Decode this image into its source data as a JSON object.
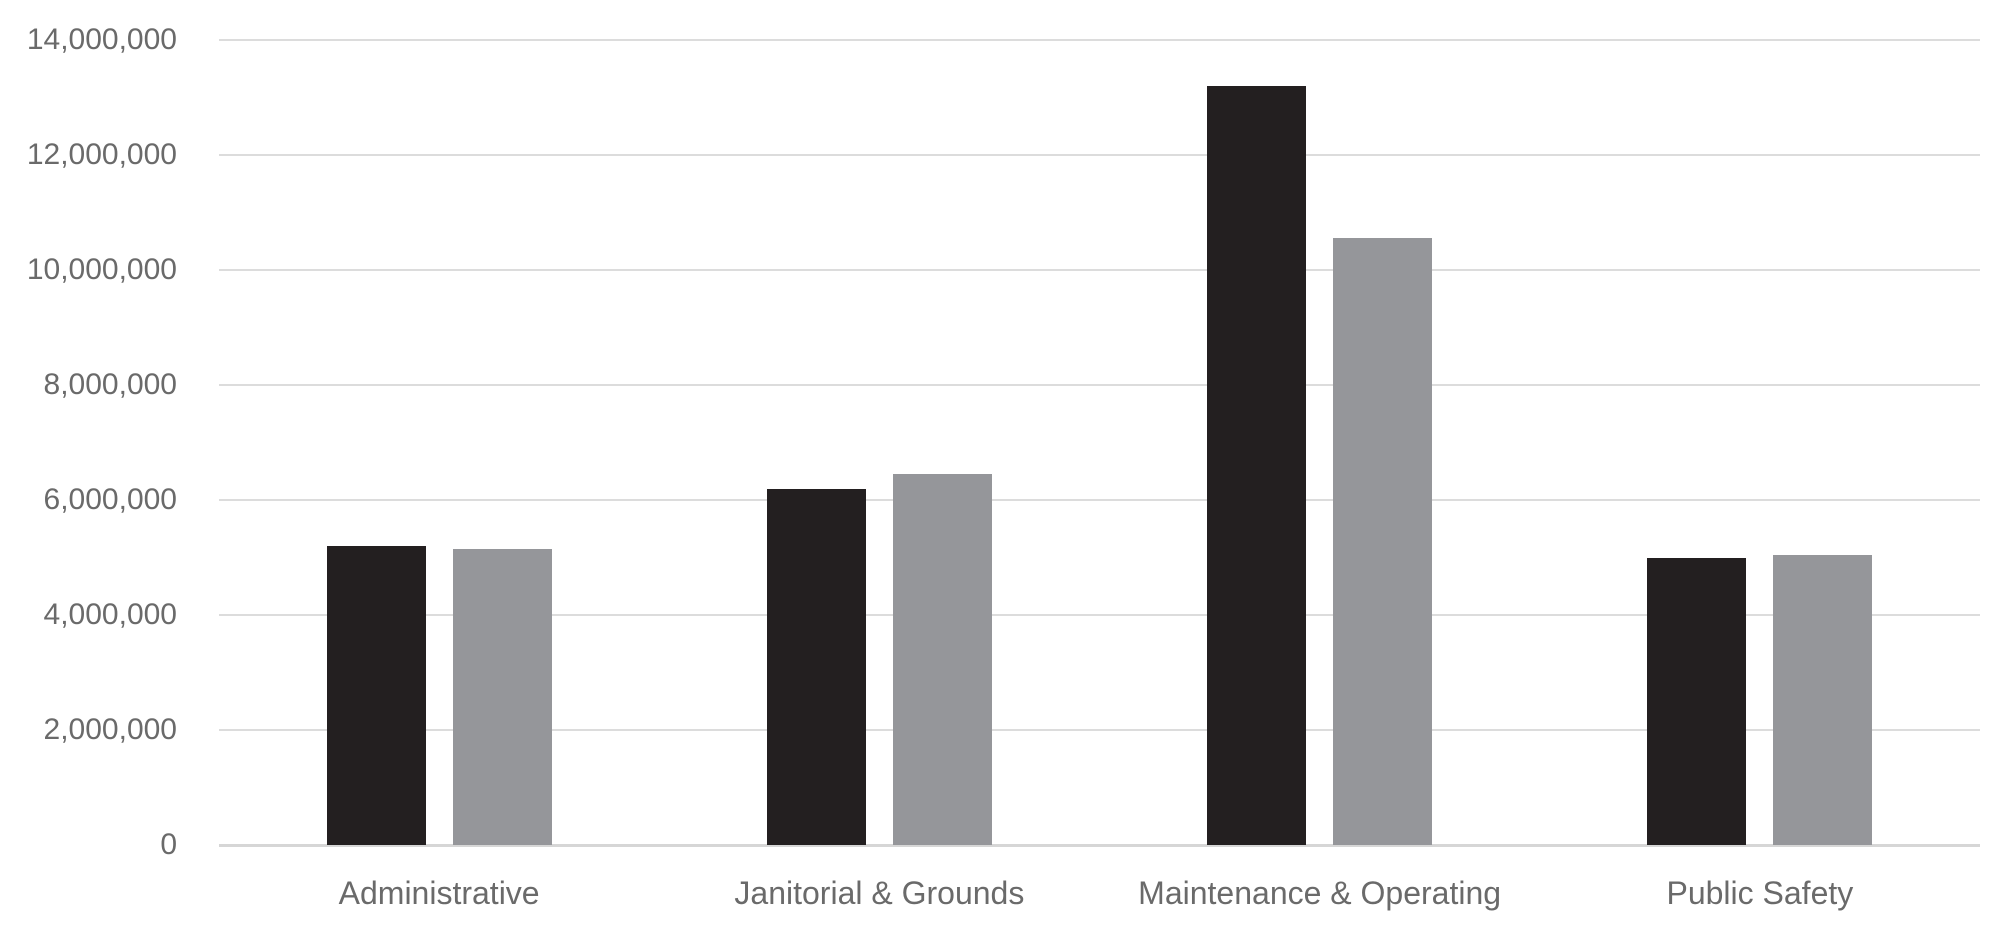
{
  "chart_data": {
    "type": "bar",
    "title": "",
    "xlabel": "",
    "ylabel": "",
    "categories": [
      "Administrative",
      "Janitorial & Grounds",
      "Maintenance & Operating",
      "Public Safety"
    ],
    "series": [
      {
        "color": "#231f20",
        "values": [
          5200000,
          6200000,
          13200000,
          5000000
        ]
      },
      {
        "color": "#95969a",
        "values": [
          5150000,
          6450000,
          10550000,
          5050000
        ]
      }
    ],
    "ylim": [
      0,
      14000000
    ],
    "ytick_interval": 2000000,
    "ytick_labels": [
      "0",
      "2,000,000",
      "4,000,000",
      "6,000,000",
      "8,000,000",
      "10,000,000",
      "12,000,000",
      "14,000,000"
    ],
    "grid": "horizontal",
    "legend": "none"
  },
  "colors": {
    "background": "#ffffff",
    "gridline": "#dcdcdc",
    "axis_line": "#d6d6d6",
    "axis_text": "#6a6a6a",
    "bar_dark": "#231f20",
    "bar_gray": "#95969a"
  }
}
